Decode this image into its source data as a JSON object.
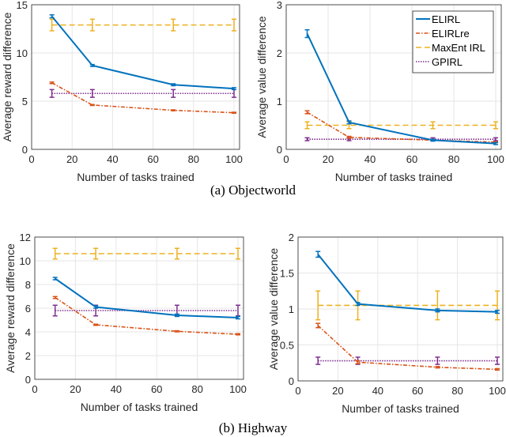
{
  "colors": {
    "ELIRL": "#0072bd",
    "ELIRLre": "#d95319",
    "MaxEnt IRL": "#edb120",
    "GPIRL": "#7e2f8e"
  },
  "captions": {
    "a": "(a) Objectworld",
    "b": "(b) Highway"
  },
  "legend": {
    "position": "top-right of panel 2",
    "entries": [
      "ELIRL",
      "ELIRLre",
      "MaxEnt IRL",
      "GPIRL"
    ]
  },
  "chart_data": [
    {
      "type": "line",
      "xlabel": "Number of tasks trained",
      "ylabel": "Average reward difference",
      "xlim": [
        0,
        100
      ],
      "ylim": [
        0,
        15
      ],
      "xticks": [
        0,
        20,
        40,
        60,
        80,
        100
      ],
      "yticks": [
        0,
        5,
        10,
        15
      ],
      "grid": true,
      "x": [
        10,
        30,
        70,
        100
      ],
      "series": [
        {
          "name": "ELIRL",
          "values": [
            13.8,
            8.7,
            6.7,
            6.3
          ],
          "err": [
            0.15,
            0.1,
            0.1,
            0.1
          ]
        },
        {
          "name": "ELIRLre",
          "values": [
            6.9,
            4.6,
            4.05,
            3.8
          ],
          "err": [
            0.08,
            0.05,
            0.05,
            0.05
          ]
        },
        {
          "name": "MaxEnt IRL",
          "values": [
            12.9,
            12.9,
            12.9,
            12.9
          ],
          "err": [
            0.6,
            0.6,
            0.6,
            0.6
          ]
        },
        {
          "name": "GPIRL",
          "values": [
            5.8,
            5.8,
            5.8,
            5.8
          ],
          "err": [
            0.4,
            0.4,
            0.4,
            0.4
          ]
        }
      ]
    },
    {
      "type": "line",
      "xlabel": "Number of tasks trained",
      "ylabel": "Average value difference",
      "xlim": [
        0,
        100
      ],
      "ylim": [
        0,
        3
      ],
      "xticks": [
        0,
        20,
        40,
        60,
        80,
        100
      ],
      "yticks": [
        0,
        1,
        2,
        3
      ],
      "grid": true,
      "legend": true,
      "x": [
        10,
        30,
        70,
        100
      ],
      "series": [
        {
          "name": "ELIRL",
          "values": [
            2.4,
            0.56,
            0.19,
            0.12
          ],
          "err": [
            0.08,
            0.03,
            0.02,
            0.02
          ]
        },
        {
          "name": "ELIRLre",
          "values": [
            0.77,
            0.25,
            0.19,
            0.15
          ],
          "err": [
            0.03,
            0.02,
            0.01,
            0.01
          ]
        },
        {
          "name": "MaxEnt IRL",
          "values": [
            0.5,
            0.5,
            0.5,
            0.5
          ],
          "err": [
            0.07,
            0.07,
            0.07,
            0.07
          ]
        },
        {
          "name": "GPIRL",
          "values": [
            0.21,
            0.21,
            0.21,
            0.21
          ],
          "err": [
            0.03,
            0.03,
            0.03,
            0.03
          ]
        }
      ]
    },
    {
      "type": "line",
      "xlabel": "Number of tasks trained",
      "ylabel": "Average reward difference",
      "xlim": [
        0,
        100
      ],
      "ylim": [
        0,
        12
      ],
      "xticks": [
        0,
        20,
        40,
        60,
        80,
        100
      ],
      "yticks": [
        0,
        2,
        4,
        6,
        8,
        10,
        12
      ],
      "grid": true,
      "x": [
        10,
        30,
        70,
        100
      ],
      "series": [
        {
          "name": "ELIRL",
          "values": [
            8.5,
            6.1,
            5.4,
            5.2
          ],
          "err": [
            0.1,
            0.1,
            0.1,
            0.1
          ]
        },
        {
          "name": "ELIRLre",
          "values": [
            6.9,
            4.6,
            4.05,
            3.8
          ],
          "err": [
            0.08,
            0.05,
            0.05,
            0.05
          ]
        },
        {
          "name": "MaxEnt IRL",
          "values": [
            10.6,
            10.6,
            10.6,
            10.6
          ],
          "err": [
            0.45,
            0.45,
            0.45,
            0.45
          ]
        },
        {
          "name": "GPIRL",
          "values": [
            5.8,
            5.8,
            5.8,
            5.8
          ],
          "err": [
            0.45,
            0.45,
            0.45,
            0.45
          ]
        }
      ]
    },
    {
      "type": "line",
      "xlabel": "Number of tasks trained",
      "ylabel": "Average value difference",
      "xlim": [
        0,
        100
      ],
      "ylim": [
        0,
        2
      ],
      "xticks": [
        0,
        20,
        40,
        60,
        80,
        100
      ],
      "yticks": [
        0,
        0.5,
        1,
        1.5,
        2
      ],
      "grid": true,
      "x": [
        10,
        30,
        70,
        100
      ],
      "series": [
        {
          "name": "ELIRL",
          "values": [
            1.76,
            1.07,
            0.98,
            0.96
          ],
          "err": [
            0.04,
            0.02,
            0.02,
            0.02
          ]
        },
        {
          "name": "ELIRLre",
          "values": [
            0.77,
            0.26,
            0.19,
            0.16
          ],
          "err": [
            0.03,
            0.02,
            0.01,
            0.01
          ]
        },
        {
          "name": "MaxEnt IRL",
          "values": [
            1.05,
            1.05,
            1.05,
            1.05
          ],
          "err": [
            0.2,
            0.2,
            0.2,
            0.2
          ]
        },
        {
          "name": "GPIRL",
          "values": [
            0.28,
            0.28,
            0.28,
            0.28
          ],
          "err": [
            0.05,
            0.05,
            0.05,
            0.05
          ]
        }
      ]
    }
  ]
}
